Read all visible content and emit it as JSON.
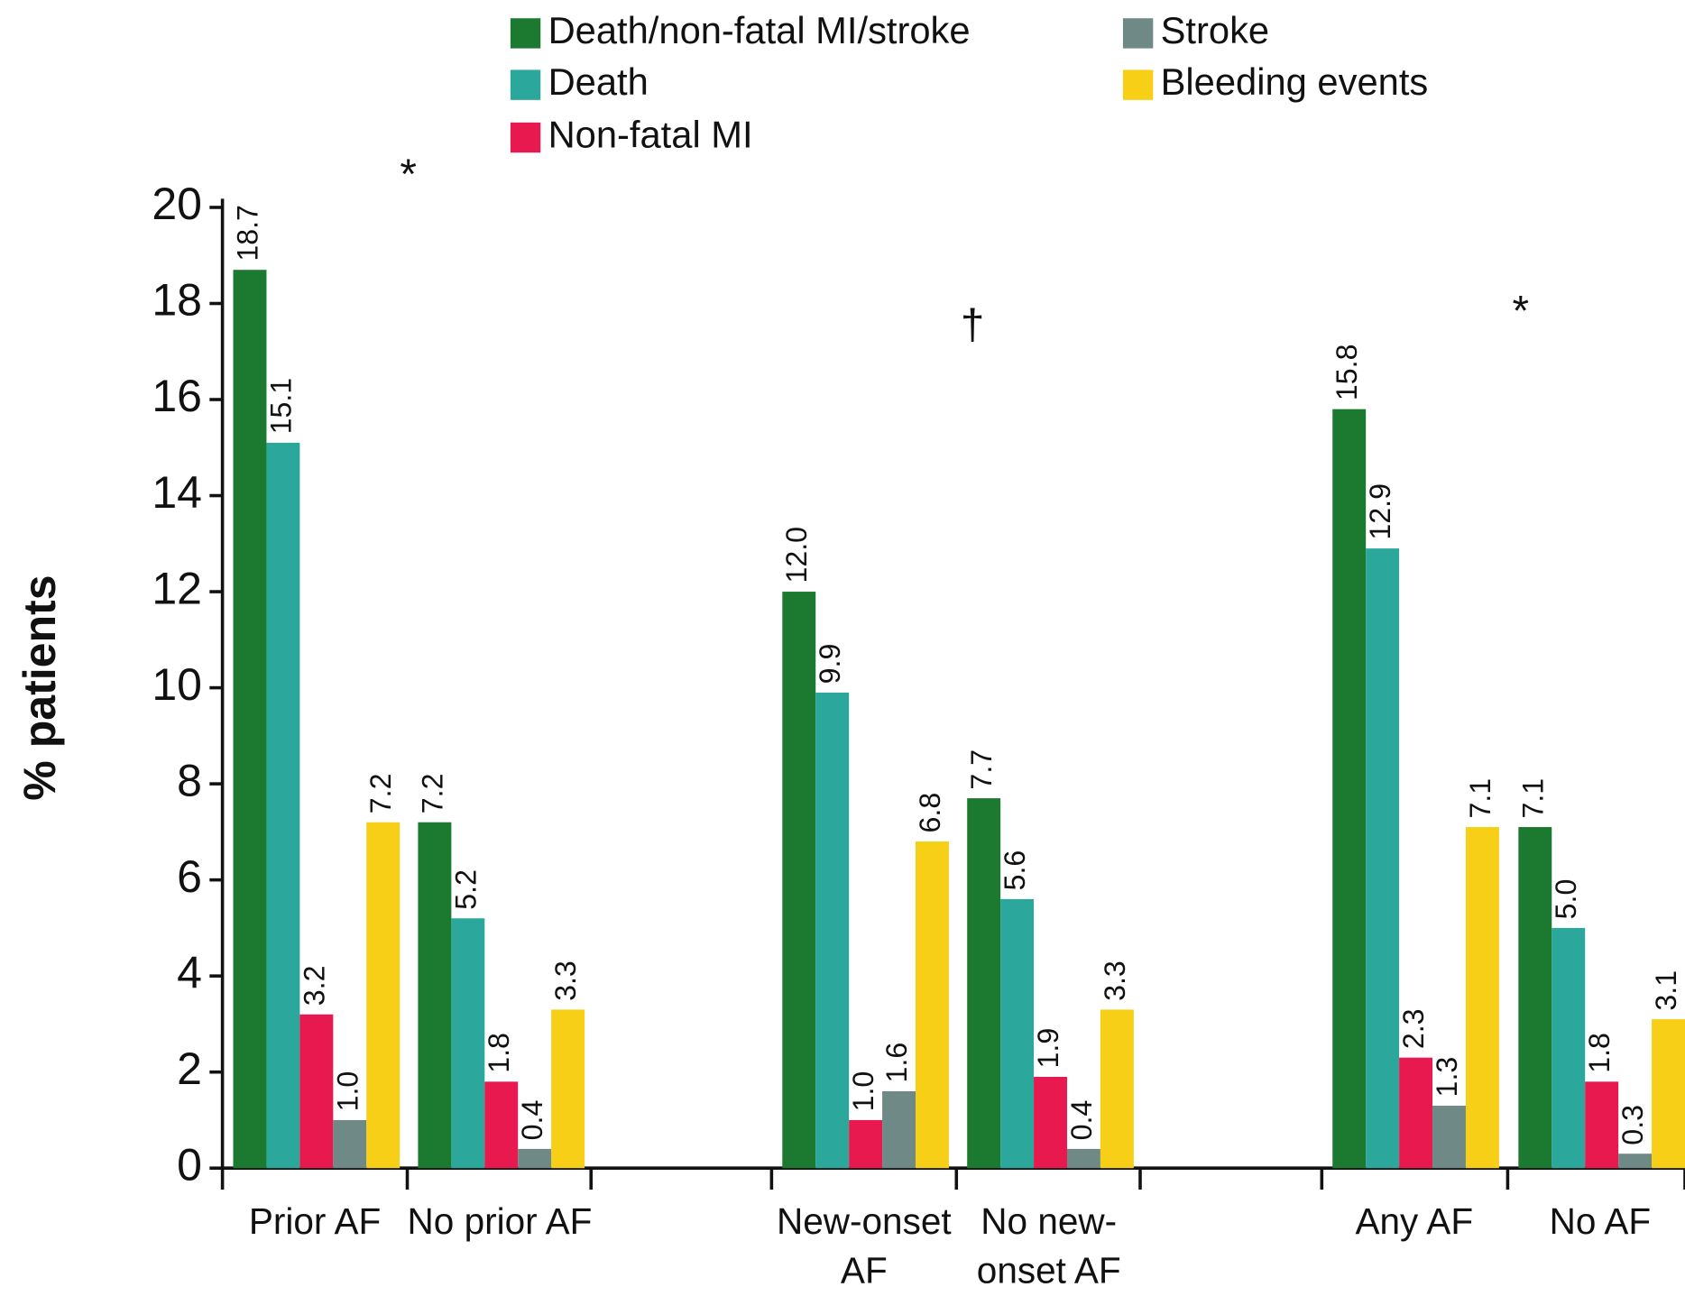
{
  "chart_data": {
    "type": "bar",
    "y_label": "% patients",
    "categories": [
      "Prior AF",
      "No prior AF",
      "New-onset AF",
      "No new-onset AF",
      "Any AF",
      "No AF"
    ],
    "series": [
      {
        "name": "Death/non-fatal MI/stroke",
        "color": "#1b7a2f",
        "values": [
          18.7,
          7.2,
          12.0,
          7.7,
          15.8,
          7.1
        ],
        "value_labels": [
          "18.7",
          "7.2",
          "12.0",
          "7.7",
          "15.8",
          "7.1"
        ]
      },
      {
        "name": "Death",
        "color": "#2ba89b",
        "values": [
          15.1,
          5.2,
          9.9,
          5.6,
          12.9,
          5.0
        ],
        "value_labels": [
          "15.1",
          "5.2",
          "9.9",
          "5.6",
          "12.9",
          "5.0"
        ]
      },
      {
        "name": "Non-fatal MI",
        "color": "#e8194f",
        "values": [
          3.2,
          1.8,
          1.0,
          1.9,
          2.3,
          1.8
        ],
        "value_labels": [
          "3.2",
          "1.8",
          "1.0",
          "1.9",
          "2.3",
          "1.8"
        ]
      },
      {
        "name": "Stroke",
        "color": "#6f8986",
        "values": [
          1.0,
          0.4,
          1.6,
          0.4,
          1.3,
          0.3
        ],
        "value_labels": [
          "1.0",
          "0.4",
          "1.6",
          "0.4",
          "1.3",
          "0.3"
        ]
      },
      {
        "name": "Bleeding events",
        "color": "#f7cf16",
        "values": [
          7.2,
          3.3,
          6.8,
          3.3,
          7.1,
          3.1
        ],
        "value_labels": [
          "7.2",
          "3.3",
          "6.8",
          "3.3",
          "7.1",
          "3.1"
        ]
      }
    ],
    "annotations": [
      "*",
      "†",
      "*"
    ],
    "ylim": [
      0,
      20
    ],
    "yticks": [
      0,
      2,
      4,
      6,
      8,
      10,
      12,
      14,
      16,
      18,
      20
    ]
  }
}
